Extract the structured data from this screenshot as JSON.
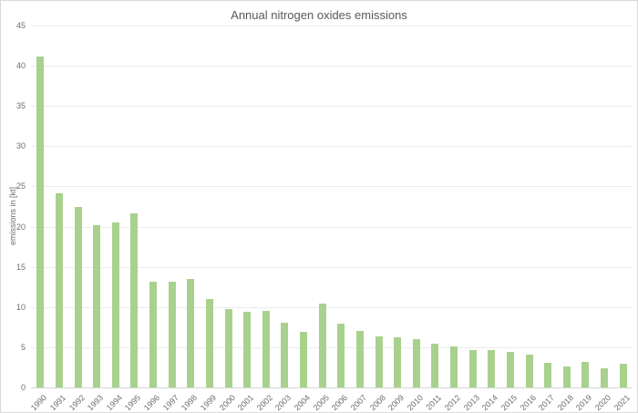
{
  "window": {
    "background": "#ffffff",
    "border_color": "#d9d9d9"
  },
  "chart_data": {
    "type": "bar",
    "title": "Annual nitrogen oxides emissions",
    "xlabel": "",
    "ylabel": "emissions in [kt]",
    "categories": [
      "1990",
      "1991",
      "1992",
      "1993",
      "1994",
      "1995",
      "1996",
      "1997",
      "1998",
      "1999",
      "2000",
      "2001",
      "2002",
      "2003",
      "2004",
      "2005",
      "2006",
      "2007",
      "2008",
      "2009",
      "2010",
      "2011",
      "2012",
      "2013",
      "2014",
      "2015",
      "2016",
      "2017",
      "2018",
      "2019",
      "2020",
      "2021"
    ],
    "values": [
      41.1,
      24.2,
      22.4,
      20.2,
      20.5,
      21.7,
      13.1,
      13.2,
      13.5,
      11.0,
      9.7,
      9.4,
      9.5,
      8.1,
      6.9,
      10.4,
      7.9,
      7.0,
      6.3,
      6.2,
      6.0,
      5.5,
      5.1,
      4.6,
      4.6,
      4.4,
      4.1,
      3.1,
      2.6,
      3.2,
      2.4,
      2.9
    ],
    "ylim": [
      0,
      45
    ],
    "ytick_step": 5,
    "yticks": [
      "0",
      "5",
      "10",
      "15",
      "20",
      "25",
      "30",
      "35",
      "40",
      "45"
    ],
    "grid": true,
    "legend": false,
    "bar_color": "#a9d18e",
    "gridline_color": "#ececec",
    "axis_line_color": "#d6d6d6",
    "title_color": "#595959",
    "tick_color": "#6e6e6e"
  }
}
